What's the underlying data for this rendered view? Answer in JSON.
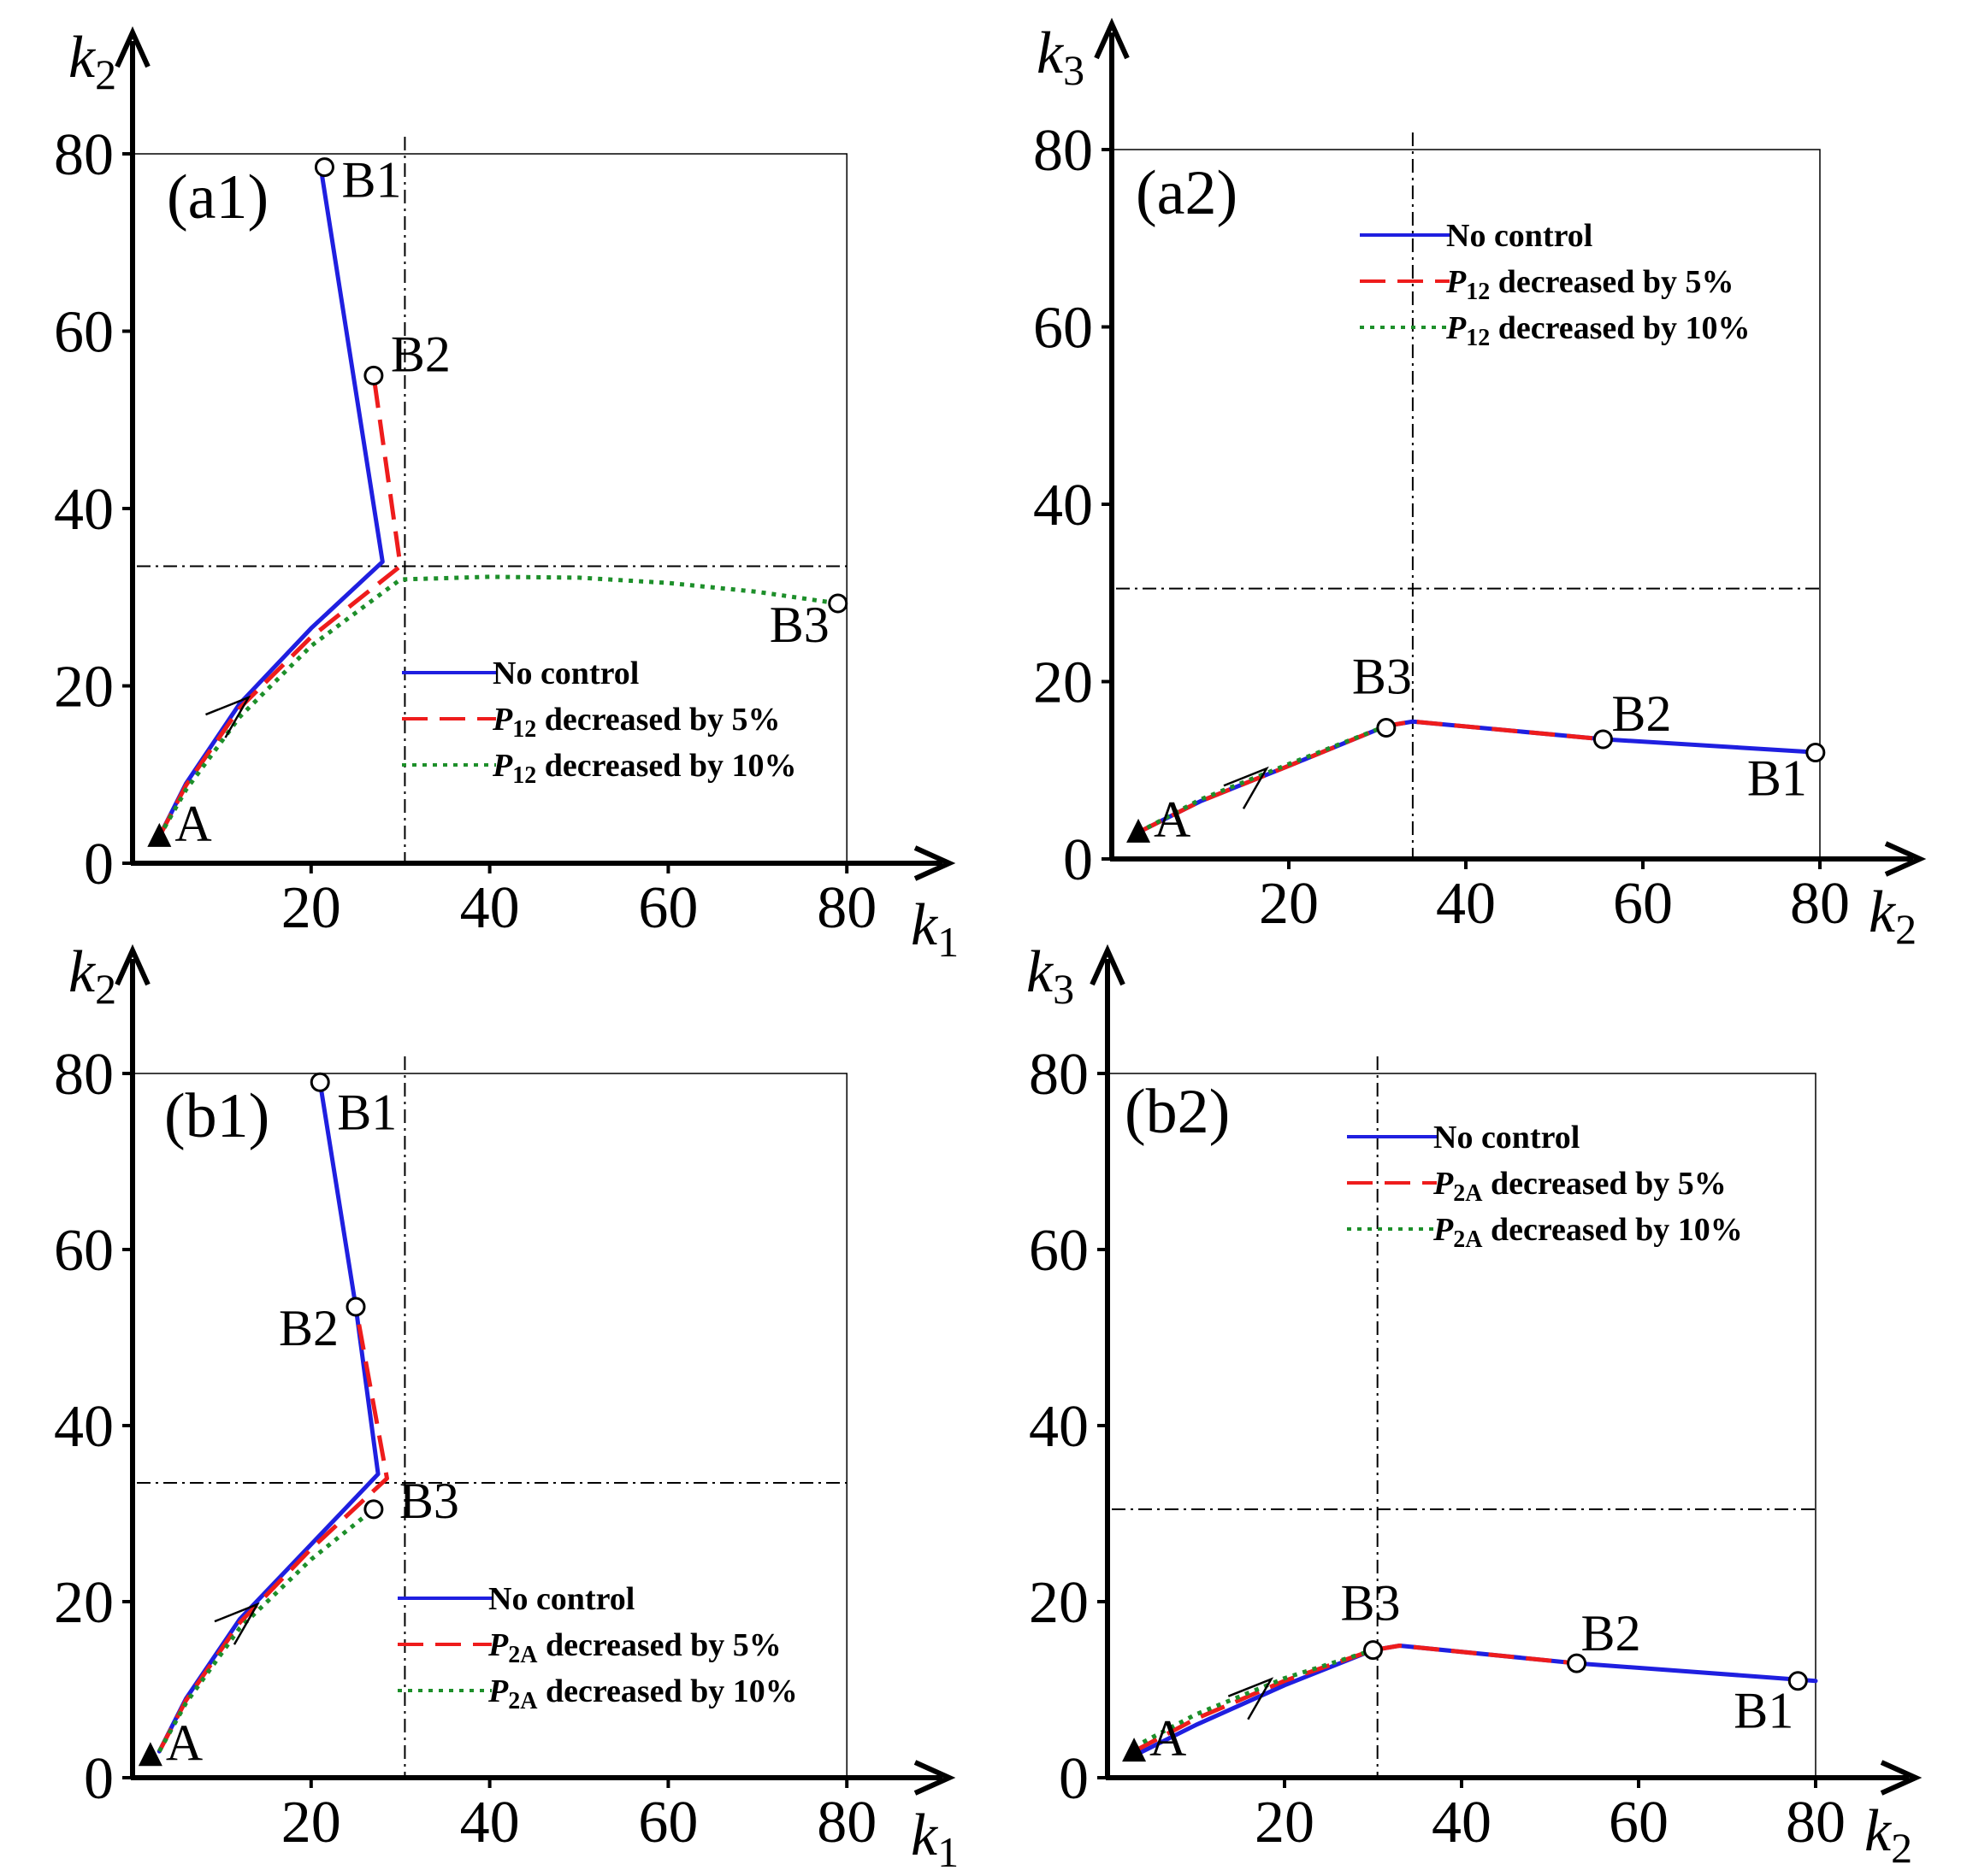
{
  "figure": "Four-panel phase-plane plot of trajectories",
  "chart_data": [
    {
      "type": "line",
      "panel_label": "(a1)",
      "xlabel": "k",
      "xlabel_sub": "1",
      "ylabel": "k",
      "ylabel_sub": "2",
      "xlim": [
        0,
        80
      ],
      "ylim": [
        0,
        80
      ],
      "xticks": [
        20,
        40,
        60,
        80
      ],
      "yticks": [
        0,
        20,
        40,
        60,
        80
      ],
      "threshold_x": 30.5,
      "threshold_y": 33.5,
      "legend_position": "lower-right",
      "legend": [
        {
          "name": "No control",
          "var": "",
          "sub": "",
          "color": "#1f1fe0",
          "dash": "solid"
        },
        {
          "name": " decreased by 5%",
          "var": "P",
          "sub": "12",
          "color": "#ee1c1c",
          "dash": "long-dash"
        },
        {
          "name": " decreased by 10%",
          "var": "P",
          "sub": "12",
          "color": "#1d8f2a",
          "dash": "dotted"
        }
      ],
      "series": [
        {
          "name": "No control",
          "points": [
            [
              3,
              3
            ],
            [
              6,
              9
            ],
            [
              12,
              18
            ],
            [
              20,
              26.5
            ],
            [
              28,
              34
            ],
            [
              21,
              79
            ]
          ]
        },
        {
          "name": "P12 decreased by 5%",
          "points": [
            [
              3,
              3
            ],
            [
              6,
              8.8
            ],
            [
              12,
              17.5
            ],
            [
              20,
              25.5
            ],
            [
              30,
              33.5
            ],
            [
              27,
              55
            ]
          ]
        },
        {
          "name": "P12 decreased by 10%",
          "points": [
            [
              3,
              3
            ],
            [
              6,
              8.3
            ],
            [
              12,
              16.5
            ],
            [
              20,
              24.5
            ],
            [
              30,
              32
            ],
            [
              40,
              32.3
            ],
            [
              50,
              32.2
            ],
            [
              60,
              31.6
            ],
            [
              70,
              30.6
            ],
            [
              79,
              29.3
            ]
          ]
        }
      ],
      "start_point": {
        "label": "A",
        "x": 3,
        "y": 3
      },
      "end_points": [
        {
          "label": "B1",
          "x": 21.5,
          "y": 78.5
        },
        {
          "label": "B2",
          "x": 27,
          "y": 55
        },
        {
          "label": "B3",
          "x": 79,
          "y": 29.3
        }
      ],
      "arrow_at": [
        12.5,
        18.5
      ]
    },
    {
      "type": "line",
      "panel_label": "(a2)",
      "xlabel": "k",
      "xlabel_sub": "2",
      "ylabel": "k",
      "ylabel_sub": "3",
      "xlim": [
        0,
        80
      ],
      "ylim": [
        0,
        80
      ],
      "xticks": [
        20,
        40,
        60,
        80
      ],
      "yticks": [
        0,
        20,
        40,
        60,
        80
      ],
      "threshold_x": 34,
      "threshold_y": 30.5,
      "legend_position": "top-right",
      "legend": [
        {
          "name": "No control",
          "var": "",
          "sub": "",
          "color": "#1f1fe0",
          "dash": "solid"
        },
        {
          "name": " decreased by 5%",
          "var": "P",
          "sub": "12",
          "color": "#ee1c1c",
          "dash": "long-dash"
        },
        {
          "name": " decreased by 10%",
          "var": "P",
          "sub": "12",
          "color": "#1d8f2a",
          "dash": "dotted"
        }
      ],
      "series": [
        {
          "name": "No control",
          "points": [
            [
              3,
              3
            ],
            [
              10,
              6.5
            ],
            [
              20,
              10.5
            ],
            [
              31,
              15
            ],
            [
              34,
              15.5
            ],
            [
              55.5,
              13.5
            ],
            [
              80,
              12
            ]
          ]
        },
        {
          "name": "P12 decreased by 5%",
          "points": [
            [
              3,
              3
            ],
            [
              10,
              6.5
            ],
            [
              20,
              10.5
            ],
            [
              31,
              15
            ],
            [
              34,
              15.5
            ],
            [
              55.5,
              13.5
            ]
          ]
        },
        {
          "name": "P12 decreased by 10%",
          "points": [
            [
              3,
              3
            ],
            [
              10,
              6.7
            ],
            [
              20,
              10.7
            ],
            [
              31,
              15
            ]
          ]
        }
      ],
      "start_point": {
        "label": "A",
        "x": 3,
        "y": 3
      },
      "end_points": [
        {
          "label": "B1",
          "x": 79.5,
          "y": 12
        },
        {
          "label": "B2",
          "x": 55.5,
          "y": 13.5
        },
        {
          "label": "B3",
          "x": 31,
          "y": 14.8
        }
      ],
      "arrow_at": [
        17,
        10
      ]
    },
    {
      "type": "line",
      "panel_label": "(b1)",
      "xlabel": "k",
      "xlabel_sub": "1",
      "ylabel": "k",
      "ylabel_sub": "2",
      "xlim": [
        0,
        80
      ],
      "ylim": [
        0,
        80
      ],
      "xticks": [
        20,
        40,
        60,
        80
      ],
      "yticks": [
        0,
        20,
        40,
        60,
        80
      ],
      "threshold_x": 30.5,
      "threshold_y": 33.5,
      "legend_position": "lower-right",
      "legend": [
        {
          "name": "No control",
          "var": "",
          "sub": "",
          "color": "#1f1fe0",
          "dash": "solid"
        },
        {
          "name": " decreased by 5%",
          "var": "P",
          "sub": "2A",
          "color": "#ee1c1c",
          "dash": "long-dash"
        },
        {
          "name": " decreased by 10%",
          "var": "P",
          "sub": "2A",
          "color": "#1d8f2a",
          "dash": "dotted"
        }
      ],
      "series": [
        {
          "name": "No control",
          "points": [
            [
              3,
              3
            ],
            [
              6,
              9
            ],
            [
              12,
              18
            ],
            [
              20,
              26.5
            ],
            [
              27.5,
              34.5
            ],
            [
              25,
              53.5
            ],
            [
              21,
              79
            ]
          ]
        },
        {
          "name": "P2A decreased by 5%",
          "points": [
            [
              3,
              3
            ],
            [
              6,
              8.8
            ],
            [
              12,
              17.6
            ],
            [
              20,
              26
            ],
            [
              28.5,
              34
            ],
            [
              25,
              53.5
            ]
          ]
        },
        {
          "name": "P2A decreased by 10%",
          "points": [
            [
              3,
              3
            ],
            [
              6,
              8.5
            ],
            [
              12,
              17
            ],
            [
              20,
              24.8
            ],
            [
              27,
              30.5
            ]
          ]
        }
      ],
      "start_point": {
        "label": "A",
        "x": 2,
        "y": 2.5
      },
      "end_points": [
        {
          "label": "B1",
          "x": 21,
          "y": 79
        },
        {
          "label": "B2",
          "x": 25,
          "y": 53.5
        },
        {
          "label": "B3",
          "x": 27,
          "y": 30.5
        }
      ],
      "arrow_at": [
        13.5,
        19.5
      ]
    },
    {
      "type": "line",
      "panel_label": "(b2)",
      "xlabel": "k",
      "xlabel_sub": "2",
      "ylabel": "k",
      "ylabel_sub": "3",
      "xlim": [
        0,
        80
      ],
      "ylim": [
        0,
        80
      ],
      "xticks": [
        20,
        40,
        60,
        80
      ],
      "yticks": [
        0,
        20,
        40,
        60,
        80
      ],
      "threshold_x": 30.5,
      "threshold_y": 30.5,
      "legend_position": "top-right",
      "legend": [
        {
          "name": "No control",
          "var": "",
          "sub": "",
          "color": "#1f1fe0",
          "dash": "solid"
        },
        {
          "name": " decreased by 5%",
          "var": "P",
          "sub": "2A",
          "color": "#ee1c1c",
          "dash": "long-dash"
        },
        {
          "name": " decreased by 10%",
          "var": "P",
          "sub": "2A",
          "color": "#1d8f2a",
          "dash": "dotted"
        }
      ],
      "series": [
        {
          "name": "No control",
          "points": [
            [
              3,
              2.5
            ],
            [
              10,
              6
            ],
            [
              20,
              10.5
            ],
            [
              30,
              14.5
            ],
            [
              33,
              15
            ],
            [
              53,
              13
            ],
            [
              80,
              11
            ]
          ]
        },
        {
          "name": "P2A decreased by 5%",
          "points": [
            [
              3,
              3
            ],
            [
              10,
              6.7
            ],
            [
              20,
              11
            ],
            [
              30,
              14.5
            ],
            [
              33,
              15
            ],
            [
              53,
              13
            ]
          ]
        },
        {
          "name": "P2A decreased by 10%",
          "points": [
            [
              3,
              3.5
            ],
            [
              10,
              7.2
            ],
            [
              20,
              11.3
            ],
            [
              30,
              14.5
            ]
          ]
        }
      ],
      "start_point": {
        "label": "A",
        "x": 3,
        "y": 3
      },
      "end_points": [
        {
          "label": "B1",
          "x": 78,
          "y": 11
        },
        {
          "label": "B2",
          "x": 53,
          "y": 13
        },
        {
          "label": "B3",
          "x": 30,
          "y": 14.5
        }
      ],
      "arrow_at": [
        18,
        11
      ]
    }
  ]
}
